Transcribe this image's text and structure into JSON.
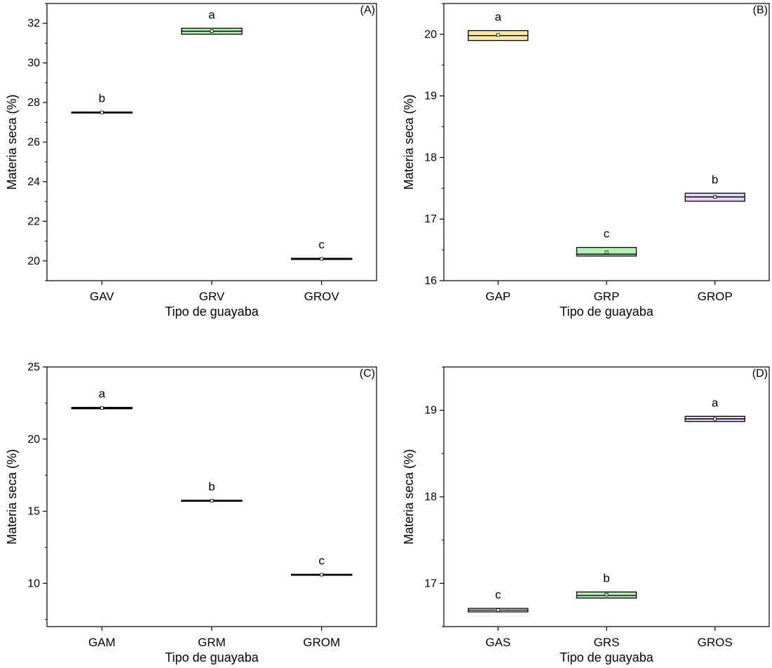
{
  "figure": {
    "panels": [
      "(A)",
      "(B)",
      "(C)",
      "(D)"
    ]
  },
  "chart_data": [
    {
      "type": "box",
      "panel_label": "(A)",
      "xlabel": "Tipo de guayaba",
      "ylabel": "Materia seca (%)",
      "ylim": [
        19,
        33
      ],
      "yticks": [
        20,
        22,
        24,
        26,
        28,
        30,
        32
      ],
      "grid": false,
      "legend": "none",
      "categories": [
        "GAV",
        "GRV",
        "GROV"
      ],
      "boxes": [
        {
          "category": "GAV",
          "q1": 27.48,
          "median": 27.5,
          "q3": 27.52,
          "mean": 27.5,
          "letter": "b",
          "color": "#ffffff"
        },
        {
          "category": "GRV",
          "q1": 31.45,
          "median": 31.6,
          "q3": 31.75,
          "mean": 31.6,
          "letter": "a",
          "color": "#b4f0b4"
        },
        {
          "category": "GROV",
          "q1": 20.07,
          "median": 20.1,
          "q3": 20.13,
          "mean": 20.1,
          "letter": "c",
          "color": "#ffffff"
        }
      ]
    },
    {
      "type": "box",
      "panel_label": "(B)",
      "xlabel": "Tipo de guayaba",
      "ylabel": "Materia seca (%)",
      "ylim": [
        16,
        20.5
      ],
      "yticks": [
        16,
        17,
        18,
        19,
        20
      ],
      "grid": false,
      "legend": "none",
      "categories": [
        "GAP",
        "GRP",
        "GROP"
      ],
      "boxes": [
        {
          "category": "GAP",
          "q1": 19.9,
          "median": 19.98,
          "q3": 20.06,
          "mean": 19.99,
          "letter": "a",
          "color": "#fde9a6"
        },
        {
          "category": "GRP",
          "q1": 16.4,
          "median": 16.43,
          "q3": 16.54,
          "mean": 16.46,
          "letter": "c",
          "color": "#b4f0b4"
        },
        {
          "category": "GROP",
          "q1": 17.29,
          "median": 17.36,
          "q3": 17.42,
          "mean": 17.36,
          "letter": "b",
          "color": "#e6d2f5"
        }
      ]
    },
    {
      "type": "box",
      "panel_label": "(C)",
      "xlabel": "Tipo de guayaba",
      "ylabel": "Materia seca (%)",
      "ylim": [
        7,
        25
      ],
      "yticks": [
        10,
        15,
        20,
        25
      ],
      "grid": false,
      "legend": "none",
      "categories": [
        "GAM",
        "GRM",
        "GROM"
      ],
      "boxes": [
        {
          "category": "GAM",
          "q1": 22.1,
          "median": 22.15,
          "q3": 22.2,
          "mean": 22.15,
          "letter": "a",
          "color": "#ffffff"
        },
        {
          "category": "GRM",
          "q1": 15.7,
          "median": 15.73,
          "q3": 15.76,
          "mean": 15.73,
          "letter": "b",
          "color": "#ffffff"
        },
        {
          "category": "GROM",
          "q1": 10.57,
          "median": 10.6,
          "q3": 10.63,
          "mean": 10.6,
          "letter": "c",
          "color": "#ffffff"
        }
      ]
    },
    {
      "type": "box",
      "panel_label": "(D)",
      "xlabel": "Tipo de guayaba",
      "ylabel": "Materia seca (%)",
      "ylim": [
        16.5,
        19.5
      ],
      "yticks": [
        17,
        18,
        19
      ],
      "grid": false,
      "legend": "none",
      "categories": [
        "GAS",
        "GRS",
        "GROS"
      ],
      "boxes": [
        {
          "category": "GAS",
          "q1": 16.67,
          "median": 16.69,
          "q3": 16.71,
          "mean": 16.69,
          "letter": "c",
          "color": "#ffffff"
        },
        {
          "category": "GRS",
          "q1": 16.83,
          "median": 16.86,
          "q3": 16.9,
          "mean": 16.87,
          "letter": "b",
          "color": "#b4f0b4"
        },
        {
          "category": "GROS",
          "q1": 18.87,
          "median": 18.9,
          "q3": 18.93,
          "mean": 18.9,
          "letter": "a",
          "color": "#e6d2f5"
        }
      ]
    }
  ]
}
